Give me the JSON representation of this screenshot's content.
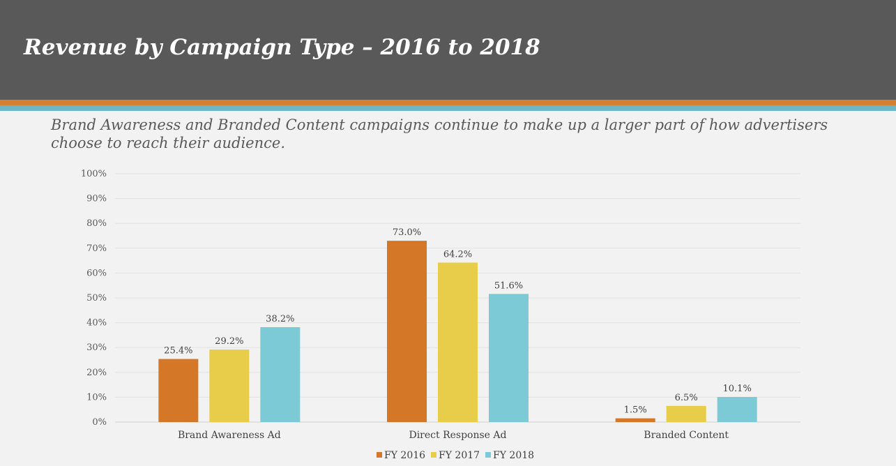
{
  "header": {
    "title": "Revenue by Campaign Type – 2016 to 2018",
    "subtitle": "Brand Awareness and Branded Content campaigns continue to make up a larger part of how advertisers choose to reach their audience."
  },
  "colors": {
    "header_bg": "#595959",
    "stripe_orange": "#d4802f",
    "stripe_teal": "#6db6c6",
    "background": "#f2f2f2"
  },
  "chart_data": {
    "type": "bar",
    "title": "Revenue by Campaign Type – 2016 to 2018",
    "xlabel": "",
    "ylabel": "",
    "ylim": [
      0,
      100
    ],
    "y_ticks": [
      "0%",
      "10%",
      "20%",
      "30%",
      "40%",
      "50%",
      "60%",
      "70%",
      "80%",
      "90%",
      "100%"
    ],
    "grid": true,
    "legend_position": "bottom",
    "categories": [
      "Brand Awareness Ad",
      "Direct Response Ad",
      "Branded Content"
    ],
    "series": [
      {
        "name": "FY 2016",
        "color": "#d47828",
        "values": [
          25.4,
          73.0,
          1.5
        ],
        "labels": [
          "25.4%",
          "73.0%",
          "1.5%"
        ]
      },
      {
        "name": "FY 2017",
        "color": "#e8cd4a",
        "values": [
          29.2,
          64.2,
          6.5
        ],
        "labels": [
          "29.2%",
          "64.2%",
          "6.5%"
        ]
      },
      {
        "name": "FY 2018",
        "color": "#7ccad6",
        "values": [
          38.2,
          51.6,
          10.1
        ],
        "labels": [
          "38.2%",
          "51.6%",
          "10.1%"
        ]
      }
    ]
  }
}
